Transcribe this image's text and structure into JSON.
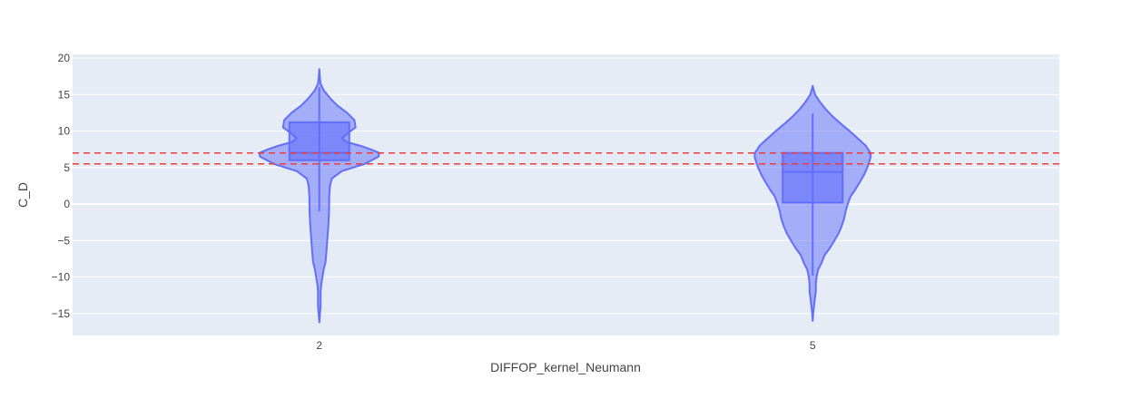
{
  "chart_data": {
    "type": "violin",
    "title": "",
    "xlabel": "DIFFOP_kernel_Neumann",
    "ylabel": "C_D",
    "ylim": [
      -18,
      20.5
    ],
    "yticks": [
      -15,
      -10,
      -5,
      0,
      5,
      10,
      15,
      20
    ],
    "ytick_labels": [
      "−15",
      "−10",
      "−5",
      "0",
      "5",
      "10",
      "15",
      "20"
    ],
    "categories": [
      "2",
      "5"
    ],
    "grid": true,
    "legend": "none",
    "colors": {
      "violin_fill": "#636efa",
      "violin_line": "#636efa",
      "plot_bg": "#e5ecf6",
      "grid": "#ffffff",
      "ref_line": "#ef3b3b"
    },
    "reference_lines": [
      7.0,
      5.5
    ],
    "violins": [
      {
        "category": "2",
        "box": {
          "q1": 6.0,
          "median": 7.0,
          "q3": 11.2,
          "lower_whisker": -1.0,
          "upper_whisker": 16.0
        },
        "density": [
          [
            -16.2,
            0.0
          ],
          [
            -15.0,
            0.006
          ],
          [
            -14.0,
            0.011
          ],
          [
            -13.0,
            0.011
          ],
          [
            -12.0,
            0.011
          ],
          [
            -11.0,
            0.016
          ],
          [
            -10.0,
            0.026
          ],
          [
            -9.0,
            0.036
          ],
          [
            -8.0,
            0.051
          ],
          [
            -7.0,
            0.057
          ],
          [
            -5.0,
            0.066
          ],
          [
            -3.0,
            0.075
          ],
          [
            -1.0,
            0.081
          ],
          [
            1.0,
            0.082
          ],
          [
            2.5,
            0.088
          ],
          [
            3.5,
            0.104
          ],
          [
            4.5,
            0.185
          ],
          [
            5.5,
            0.376
          ],
          [
            6.5,
            0.49
          ],
          [
            7.0,
            0.495
          ],
          [
            7.5,
            0.425
          ],
          [
            8.0,
            0.335
          ],
          [
            8.5,
            0.225
          ],
          [
            9.0,
            0.19
          ],
          [
            9.5,
            0.22
          ],
          [
            10.5,
            0.3
          ],
          [
            11.5,
            0.29
          ],
          [
            12.5,
            0.23
          ],
          [
            13.5,
            0.15
          ],
          [
            14.5,
            0.09
          ],
          [
            15.5,
            0.04
          ],
          [
            16.5,
            0.01
          ],
          [
            17.5,
            0.004
          ],
          [
            18.5,
            0.0
          ]
        ]
      },
      {
        "category": "5",
        "box": {
          "q1": 0.2,
          "median": 4.4,
          "q3": 7.0,
          "lower_whisker": -9.8,
          "upper_whisker": 12.4
        },
        "density": [
          [
            -16.0,
            0.0
          ],
          [
            -15.0,
            0.004
          ],
          [
            -14.0,
            0.011
          ],
          [
            -13.0,
            0.018
          ],
          [
            -12.0,
            0.026
          ],
          [
            -11.0,
            0.026
          ],
          [
            -10.0,
            0.032
          ],
          [
            -9.0,
            0.045
          ],
          [
            -8.0,
            0.075
          ],
          [
            -7.0,
            0.099
          ],
          [
            -6.0,
            0.143
          ],
          [
            -5.0,
            0.18
          ],
          [
            -4.0,
            0.215
          ],
          [
            -3.0,
            0.24
          ],
          [
            -2.0,
            0.26
          ],
          [
            -1.0,
            0.272
          ],
          [
            0.0,
            0.29
          ],
          [
            1.0,
            0.312
          ],
          [
            2.0,
            0.353
          ],
          [
            3.0,
            0.39
          ],
          [
            4.0,
            0.425
          ],
          [
            5.0,
            0.452
          ],
          [
            6.0,
            0.472
          ],
          [
            6.5,
            0.48
          ],
          [
            7.0,
            0.478
          ],
          [
            8.0,
            0.438
          ],
          [
            9.0,
            0.373
          ],
          [
            10.0,
            0.305
          ],
          [
            11.0,
            0.234
          ],
          [
            12.0,
            0.165
          ],
          [
            13.0,
            0.108
          ],
          [
            14.0,
            0.059
          ],
          [
            15.0,
            0.02
          ],
          [
            16.0,
            0.002
          ],
          [
            16.2,
            0.0
          ]
        ]
      }
    ]
  }
}
